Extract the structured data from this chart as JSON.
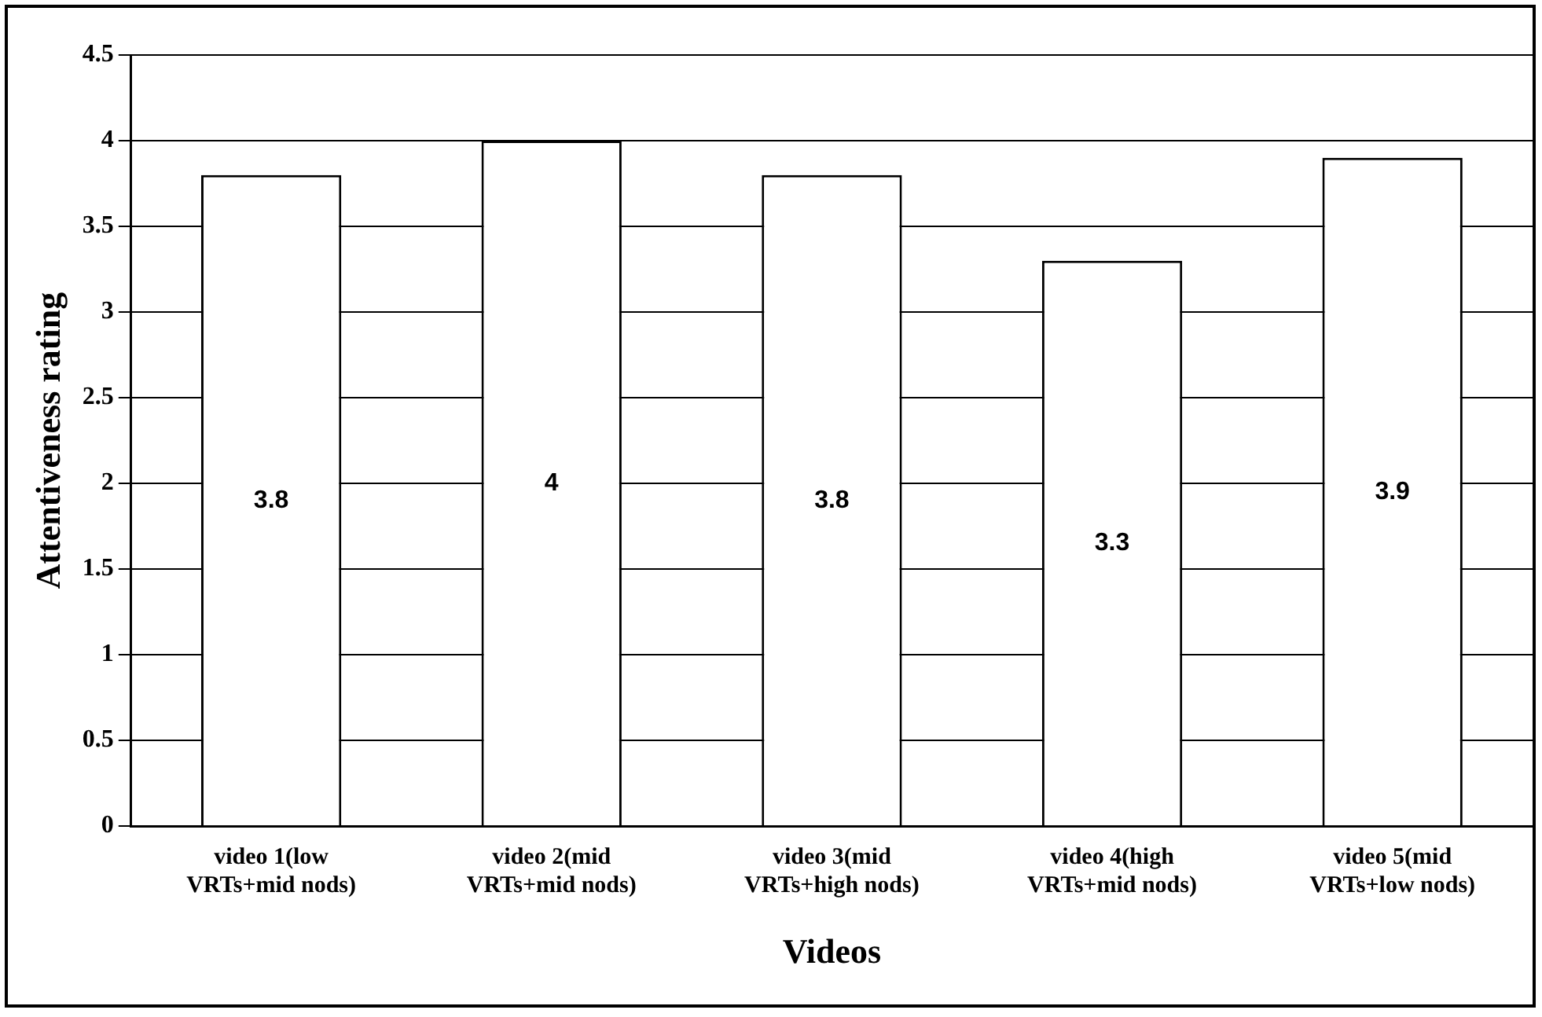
{
  "chart_data": {
    "type": "bar",
    "xlabel": "Videos",
    "ylabel": "Attentiveness rating",
    "categories": [
      "video 1(low VRTs+mid nods)",
      "video 2(mid VRTs+mid nods)",
      "video 3(mid VRTs+high nods)",
      "video 4(high VRTs+mid nods)",
      "video 5(mid VRTs+low nods)"
    ],
    "values": [
      3.8,
      4,
      3.8,
      3.3,
      3.9
    ],
    "color": "#ffffff",
    "ylim": [
      0,
      4.5
    ],
    "yticks": [
      0,
      0.5,
      1,
      1.5,
      2,
      2.5,
      3,
      3.5,
      4,
      4.5
    ],
    "grid": "y",
    "data_labels": true
  }
}
